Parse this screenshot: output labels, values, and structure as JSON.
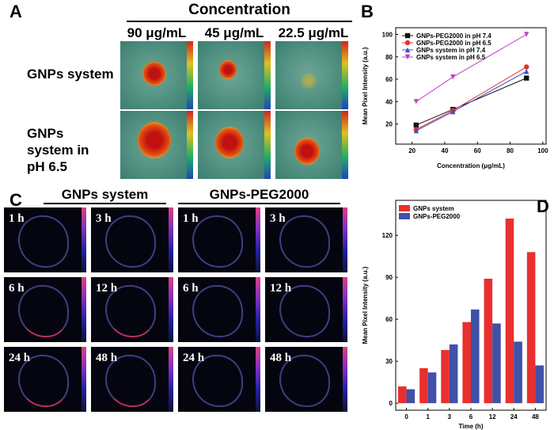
{
  "panel_labels": [
    "A",
    "B",
    "C",
    "D"
  ],
  "panel_a": {
    "header": "Concentration",
    "columns": [
      "90 μg/mL",
      "45 μg/mL",
      "22.5 μg/mL"
    ],
    "rows": [
      "GNPs system",
      "GNPs system in pH 6.5"
    ]
  },
  "panel_c": {
    "groups": [
      "GNPs system",
      "GNPs-PEG2000"
    ],
    "time_labels": [
      [
        "1 h",
        "3 h",
        "1 h",
        "3 h"
      ],
      [
        "6 h",
        "12 h",
        "6 h",
        "12 h"
      ],
      [
        "24 h",
        "48 h",
        "24 h",
        "48 h"
      ]
    ]
  },
  "chart_data": [
    {
      "type": "line",
      "xlabel": "Concentration (μg/mL)",
      "ylabel": "Mean Pixel Intensity (a.u.)",
      "x": [
        22.5,
        45,
        90
      ],
      "xlim": [
        10,
        102
      ],
      "xticks": [
        20,
        40,
        60,
        80,
        100
      ],
      "ylim": [
        2,
        106
      ],
      "yticks": [
        20,
        40,
        60,
        80,
        100
      ],
      "legend": "upper left",
      "series": [
        {
          "name": "GNPs-PEG2000 in pH 7.4",
          "color": "#111111",
          "marker": "square",
          "values": [
            19,
            33,
            61
          ]
        },
        {
          "name": "GNPs-PEG2000 in pH 6.5",
          "color": "#e8302f",
          "marker": "circle",
          "values": [
            15,
            32,
            71
          ]
        },
        {
          "name": "GNPs system in pH 7.4",
          "color": "#3f51c8",
          "marker": "triangle-up",
          "values": [
            14,
            31,
            67
          ]
        },
        {
          "name": "GNPs system in pH 6.5",
          "color": "#c040c8",
          "marker": "triangle-down",
          "values": [
            40,
            62,
            100
          ]
        }
      ]
    },
    {
      "type": "bar",
      "xlabel": "Time (h)",
      "ylabel": "Mean Pixel Intensity (a.u.)",
      "categories": [
        "0",
        "1",
        "3",
        "6",
        "12",
        "24",
        "48"
      ],
      "ylim": [
        -5,
        145
      ],
      "yticks": [
        0,
        30,
        60,
        90,
        120
      ],
      "legend": "upper left",
      "series": [
        {
          "name": "GNPs system",
          "color": "#e8302f",
          "values": [
            12,
            25,
            38,
            58,
            89,
            132,
            108
          ]
        },
        {
          "name": "GNPs-PEG2000",
          "color": "#3f51a8",
          "values": [
            10,
            22,
            42,
            67,
            57,
            44,
            27
          ]
        }
      ]
    }
  ]
}
